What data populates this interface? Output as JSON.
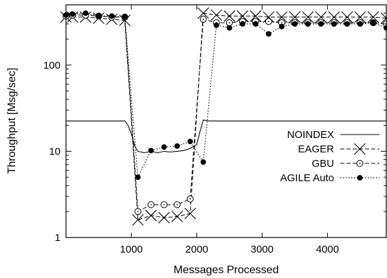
{
  "chart_data": {
    "type": "line",
    "xlabel": "Messages Processed",
    "ylabel": "Throughput [Msg/sec]",
    "xlim": [
      0,
      4900
    ],
    "ylim": [
      1,
      500
    ],
    "yscale": "log",
    "xticks": [
      1000,
      2000,
      3000,
      4000
    ],
    "yticks": [
      1,
      10,
      100
    ],
    "xtick_labels": [
      "1000",
      "2000",
      "3000",
      "4000"
    ],
    "ytick_labels": [
      "1",
      "10",
      "100"
    ],
    "legend_position": "center-right",
    "grid": false,
    "series": [
      {
        "name": "NOINDEX",
        "style": "solid",
        "marker": "none",
        "x": [
          0,
          100,
          200,
          300,
          400,
          500,
          600,
          700,
          800,
          900,
          950,
          1000,
          1050,
          1100,
          1200,
          1300,
          1400,
          1500,
          1600,
          1700,
          1800,
          1900,
          2000,
          2050,
          2100,
          2200,
          2300,
          2400,
          2500,
          2600,
          2700,
          2800,
          2900,
          3000,
          3100,
          3200,
          3300,
          3400,
          3500,
          3600,
          3700,
          3800,
          3900,
          4000,
          4100,
          4200,
          4300,
          4400,
          4500,
          4600,
          4700,
          4800,
          4900
        ],
        "y": [
          22.5,
          22.5,
          22.5,
          22.5,
          22.5,
          22.5,
          22.5,
          22.5,
          22.5,
          22.5,
          20,
          16,
          11.5,
          10,
          9.6,
          10,
          9.6,
          10,
          9.8,
          10,
          10.2,
          10.8,
          12,
          17,
          23,
          22.5,
          22.5,
          22.5,
          22.5,
          22.5,
          22.5,
          22.5,
          22.5,
          22.5,
          22.5,
          22.5,
          22.5,
          22.5,
          22.5,
          22.5,
          22.5,
          22.5,
          22.5,
          22.5,
          22.5,
          22.5,
          22.5,
          22.5,
          22.5,
          22.5,
          22.5,
          22.5,
          22.5
        ]
      },
      {
        "name": "EAGER",
        "style": "dashed",
        "marker": "x",
        "x": [
          0,
          100,
          300,
          500,
          700,
          900,
          1100,
          1300,
          1500,
          1700,
          1900,
          2100,
          2300,
          2500,
          2700,
          2900,
          3100,
          3300,
          3500,
          3700,
          3900,
          4100,
          4300,
          4500,
          4700,
          4900
        ],
        "y": [
          360,
          360,
          360,
          350,
          340,
          330,
          1.6,
          1.8,
          1.7,
          1.75,
          1.9,
          400,
          380,
          370,
          370,
          370,
          360,
          360,
          360,
          360,
          360,
          360,
          360,
          360,
          360,
          350
        ]
      },
      {
        "name": "GBU",
        "style": "dashed",
        "marker": "circle-open",
        "x": [
          0,
          100,
          300,
          500,
          700,
          900,
          1100,
          1300,
          1500,
          1700,
          1900,
          2100,
          2300,
          2500,
          2700,
          2900,
          3100,
          3300,
          3500,
          3700,
          3900,
          4100,
          4300,
          4500,
          4700,
          4900
        ],
        "y": [
          370,
          380,
          380,
          370,
          360,
          360,
          2.0,
          2.4,
          2.4,
          2.4,
          2.8,
          340,
          310,
          310,
          320,
          320,
          320,
          310,
          310,
          310,
          310,
          310,
          310,
          310,
          310,
          300
        ]
      },
      {
        "name": "AGILE Auto",
        "style": "dotted",
        "marker": "circle-filled",
        "x": [
          0,
          100,
          300,
          500,
          700,
          900,
          1100,
          1300,
          1500,
          1700,
          1900,
          2100,
          2300,
          2500,
          2700,
          2900,
          3100,
          3300,
          3500,
          3700,
          3900,
          4100,
          4300,
          4500,
          4700,
          4900
        ],
        "y": [
          380,
          390,
          400,
          370,
          370,
          360,
          5,
          10.2,
          11.2,
          11.5,
          13,
          7.5,
          290,
          270,
          300,
          300,
          230,
          280,
          300,
          300,
          300,
          300,
          300,
          300,
          310,
          270
        ]
      }
    ]
  }
}
